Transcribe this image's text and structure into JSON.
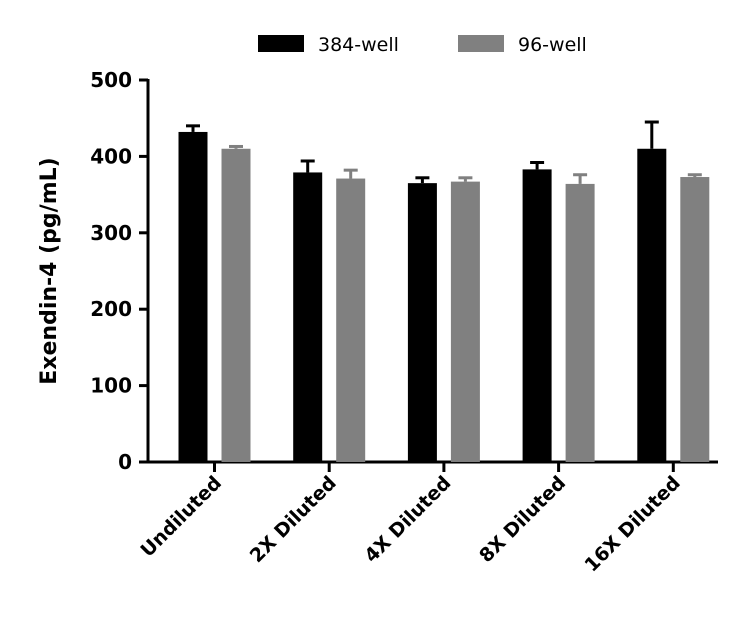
{
  "chart_data": {
    "type": "bar",
    "title": "",
    "xlabel": "",
    "ylabel": "Exendin-4 (pg/mL)",
    "ylim": [
      0,
      500
    ],
    "yticks": [
      0,
      100,
      200,
      300,
      400,
      500
    ],
    "grid": false,
    "legend_position": "top",
    "categories": [
      "Undiluted",
      "2X Diluted",
      "4X Diluted",
      "8X Diluted",
      "16X Diluted"
    ],
    "series": [
      {
        "name": "384-well",
        "color": "#000000",
        "values": [
          432,
          379,
          365,
          383,
          410
        ],
        "error": [
          8,
          15,
          7,
          9,
          35
        ]
      },
      {
        "name": "96-well",
        "color": "#808080",
        "values": [
          410,
          371,
          367,
          364,
          373
        ],
        "error": [
          3,
          11,
          5,
          12,
          3
        ]
      }
    ]
  }
}
